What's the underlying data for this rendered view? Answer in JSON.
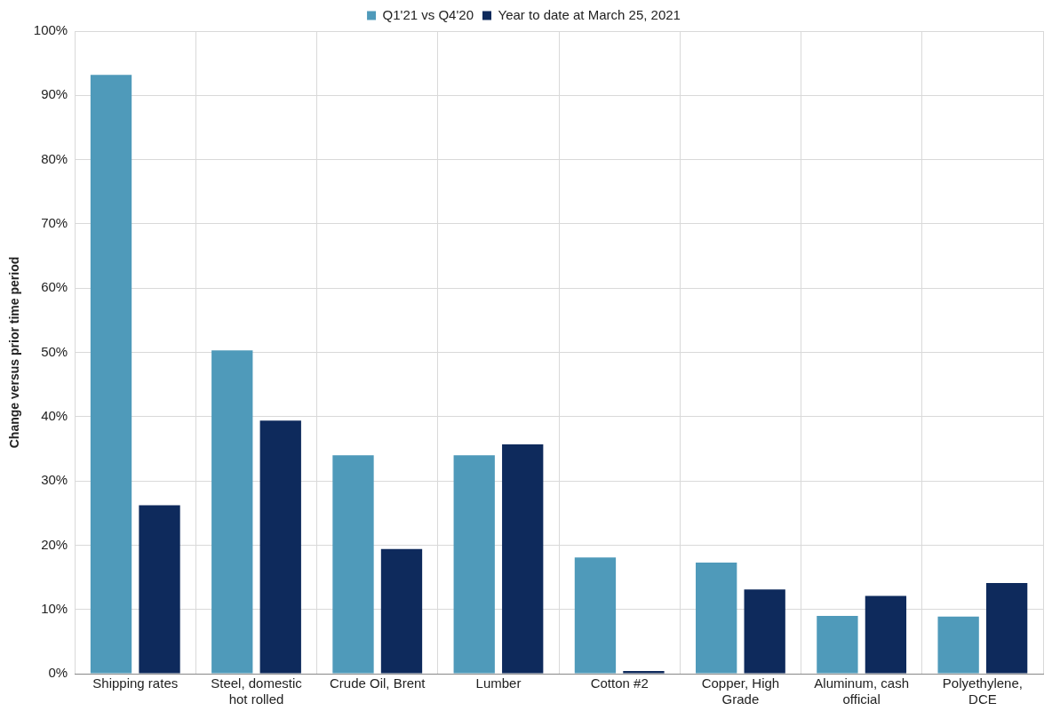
{
  "chart_data": {
    "type": "bar",
    "ylabel": "Change versus prior time period",
    "categories": [
      "Shipping rates",
      "Steel, domestic hot rolled",
      "Crude Oil, Brent",
      "Lumber",
      "Cotton #2",
      "Copper, High Grade",
      "Aluminum, cash official",
      "Polyethylene, DCE"
    ],
    "series": [
      {
        "name": "Q1'21 vs Q4'20",
        "color": "#4f9aba",
        "values": [
          93.2,
          50.3,
          34.0,
          34.0,
          18.1,
          17.3,
          9.0,
          8.9
        ]
      },
      {
        "name": "Year to date at March 25, 2021",
        "color": "#0e2a5c",
        "values": [
          26.2,
          39.4,
          19.4,
          35.7,
          0.4,
          13.1,
          12.1,
          14.1
        ]
      }
    ],
    "ylim": [
      0,
      100
    ],
    "yticks": [
      {
        "value": 0,
        "label": "0%"
      },
      {
        "value": 10,
        "label": "10%"
      },
      {
        "value": 20,
        "label": "20%"
      },
      {
        "value": 30,
        "label": "30%"
      },
      {
        "value": 40,
        "label": "40%"
      },
      {
        "value": 50,
        "label": "50%"
      },
      {
        "value": 60,
        "label": "60%"
      },
      {
        "value": 70,
        "label": "70%"
      },
      {
        "value": 80,
        "label": "80%"
      },
      {
        "value": 90,
        "label": "90%"
      },
      {
        "value": 100,
        "label": "100%"
      }
    ],
    "grid": true,
    "legend": "top"
  }
}
